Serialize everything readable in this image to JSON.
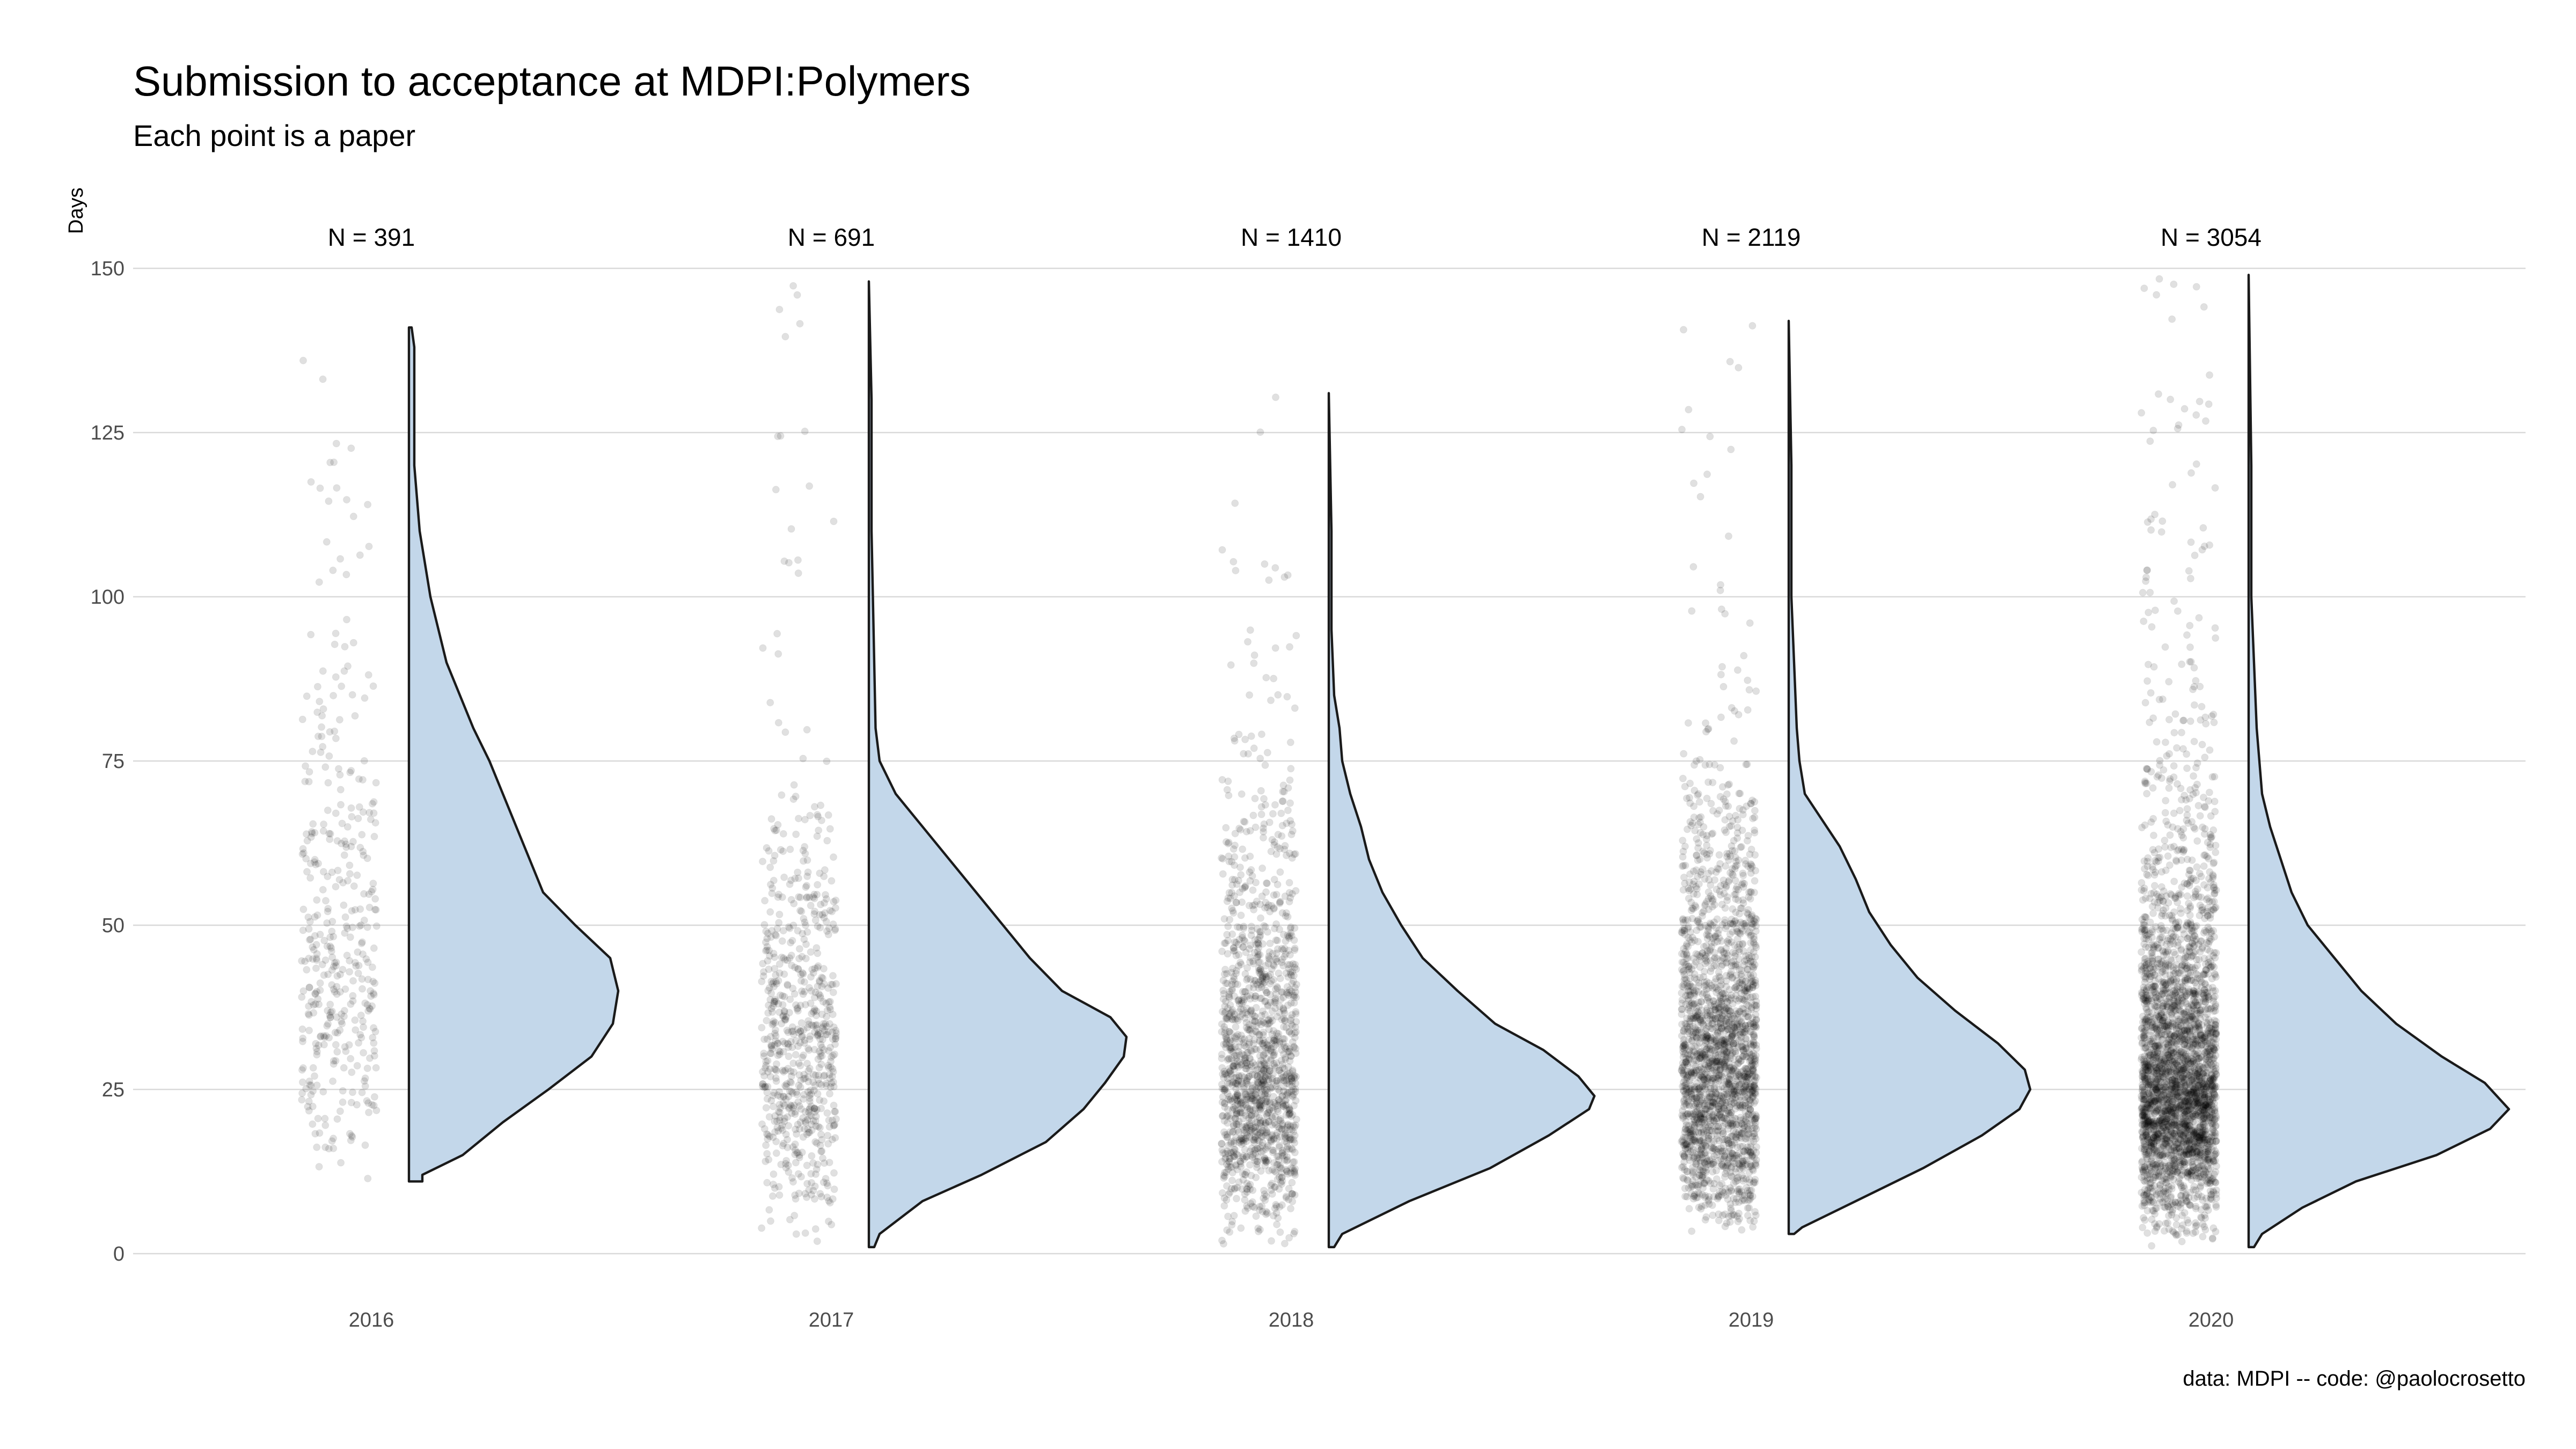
{
  "chart_data": {
    "type": "violin",
    "title": "Submission to acceptance at MDPI:Polymers",
    "subtitle": "Each point is a paper",
    "ylabel": "Days",
    "xlabel": "",
    "caption": "data: MDPI -- code: @paolocrosetto",
    "ylim": [
      0,
      150
    ],
    "yticks": [
      0,
      25,
      50,
      75,
      100,
      125,
      150
    ],
    "grid": true,
    "legend": "none",
    "colors": {
      "violin_fill": "#c3d7ea",
      "violin_stroke": "#1a1a1a",
      "points": "#000000",
      "grid": "#d9d9d9"
    },
    "categories": [
      "2016",
      "2017",
      "2018",
      "2019",
      "2020"
    ],
    "counts": [
      391,
      691,
      1410,
      2119,
      3054
    ],
    "count_labels": [
      "N = 391",
      "N = 691",
      "N = 1410",
      "N = 2119",
      "N = 3054"
    ],
    "series": [
      {
        "year": "2016",
        "n": 391,
        "min": 11,
        "max": 141,
        "density": [
          [
            11,
            0.05
          ],
          [
            12,
            0.05
          ],
          [
            15,
            0.2
          ],
          [
            20,
            0.35
          ],
          [
            25,
            0.52
          ],
          [
            30,
            0.68
          ],
          [
            35,
            0.76
          ],
          [
            40,
            0.78
          ],
          [
            45,
            0.75
          ],
          [
            50,
            0.62
          ],
          [
            55,
            0.5
          ],
          [
            60,
            0.45
          ],
          [
            65,
            0.4
          ],
          [
            70,
            0.35
          ],
          [
            75,
            0.3
          ],
          [
            80,
            0.24
          ],
          [
            90,
            0.14
          ],
          [
            100,
            0.08
          ],
          [
            110,
            0.04
          ],
          [
            120,
            0.02
          ],
          [
            130,
            0.02
          ],
          [
            138,
            0.02
          ],
          [
            141,
            0.01
          ]
        ]
      },
      {
        "year": "2017",
        "n": 691,
        "min": 1,
        "max": 148,
        "density": [
          [
            1,
            0.02
          ],
          [
            3,
            0.04
          ],
          [
            8,
            0.2
          ],
          [
            12,
            0.42
          ],
          [
            17,
            0.66
          ],
          [
            22,
            0.8
          ],
          [
            26,
            0.88
          ],
          [
            30,
            0.95
          ],
          [
            33,
            0.96
          ],
          [
            36,
            0.9
          ],
          [
            40,
            0.72
          ],
          [
            45,
            0.6
          ],
          [
            50,
            0.5
          ],
          [
            55,
            0.4
          ],
          [
            60,
            0.3
          ],
          [
            65,
            0.2
          ],
          [
            70,
            0.1
          ],
          [
            75,
            0.04
          ],
          [
            80,
            0.025
          ],
          [
            90,
            0.02
          ],
          [
            100,
            0.015
          ],
          [
            110,
            0.01
          ],
          [
            130,
            0.01
          ],
          [
            148,
            0.0
          ]
        ]
      },
      {
        "year": "2018",
        "n": 1410,
        "min": 1,
        "max": 131,
        "density": [
          [
            1,
            0.02
          ],
          [
            3,
            0.05
          ],
          [
            8,
            0.3
          ],
          [
            13,
            0.6
          ],
          [
            18,
            0.82
          ],
          [
            22,
            0.97
          ],
          [
            24,
            0.99
          ],
          [
            27,
            0.93
          ],
          [
            31,
            0.8
          ],
          [
            35,
            0.62
          ],
          [
            40,
            0.48
          ],
          [
            45,
            0.35
          ],
          [
            50,
            0.27
          ],
          [
            55,
            0.2
          ],
          [
            60,
            0.15
          ],
          [
            65,
            0.12
          ],
          [
            70,
            0.08
          ],
          [
            75,
            0.05
          ],
          [
            80,
            0.04
          ],
          [
            85,
            0.02
          ],
          [
            95,
            0.01
          ],
          [
            110,
            0.01
          ],
          [
            131,
            0.0
          ]
        ]
      },
      {
        "year": "2019",
        "n": 2119,
        "min": 3,
        "max": 142,
        "density": [
          [
            3,
            0.02
          ],
          [
            4,
            0.05
          ],
          [
            8,
            0.25
          ],
          [
            13,
            0.5
          ],
          [
            18,
            0.72
          ],
          [
            22,
            0.86
          ],
          [
            25,
            0.9
          ],
          [
            28,
            0.88
          ],
          [
            32,
            0.78
          ],
          [
            37,
            0.62
          ],
          [
            42,
            0.48
          ],
          [
            47,
            0.38
          ],
          [
            52,
            0.3
          ],
          [
            57,
            0.25
          ],
          [
            62,
            0.19
          ],
          [
            70,
            0.06
          ],
          [
            75,
            0.04
          ],
          [
            80,
            0.03
          ],
          [
            90,
            0.02
          ],
          [
            100,
            0.01
          ],
          [
            120,
            0.01
          ],
          [
            142,
            0.0
          ]
        ]
      },
      {
        "year": "2020",
        "n": 3054,
        "min": 1,
        "max": 149,
        "density": [
          [
            1,
            0.02
          ],
          [
            3,
            0.05
          ],
          [
            7,
            0.2
          ],
          [
            11,
            0.4
          ],
          [
            15,
            0.7
          ],
          [
            19,
            0.9
          ],
          [
            22,
            0.97
          ],
          [
            26,
            0.88
          ],
          [
            30,
            0.72
          ],
          [
            35,
            0.55
          ],
          [
            40,
            0.42
          ],
          [
            45,
            0.32
          ],
          [
            50,
            0.22
          ],
          [
            55,
            0.16
          ],
          [
            60,
            0.12
          ],
          [
            65,
            0.08
          ],
          [
            70,
            0.05
          ],
          [
            75,
            0.04
          ],
          [
            80,
            0.03
          ],
          [
            90,
            0.02
          ],
          [
            100,
            0.01
          ],
          [
            120,
            0.01
          ],
          [
            149,
            0.0
          ]
        ]
      }
    ]
  }
}
